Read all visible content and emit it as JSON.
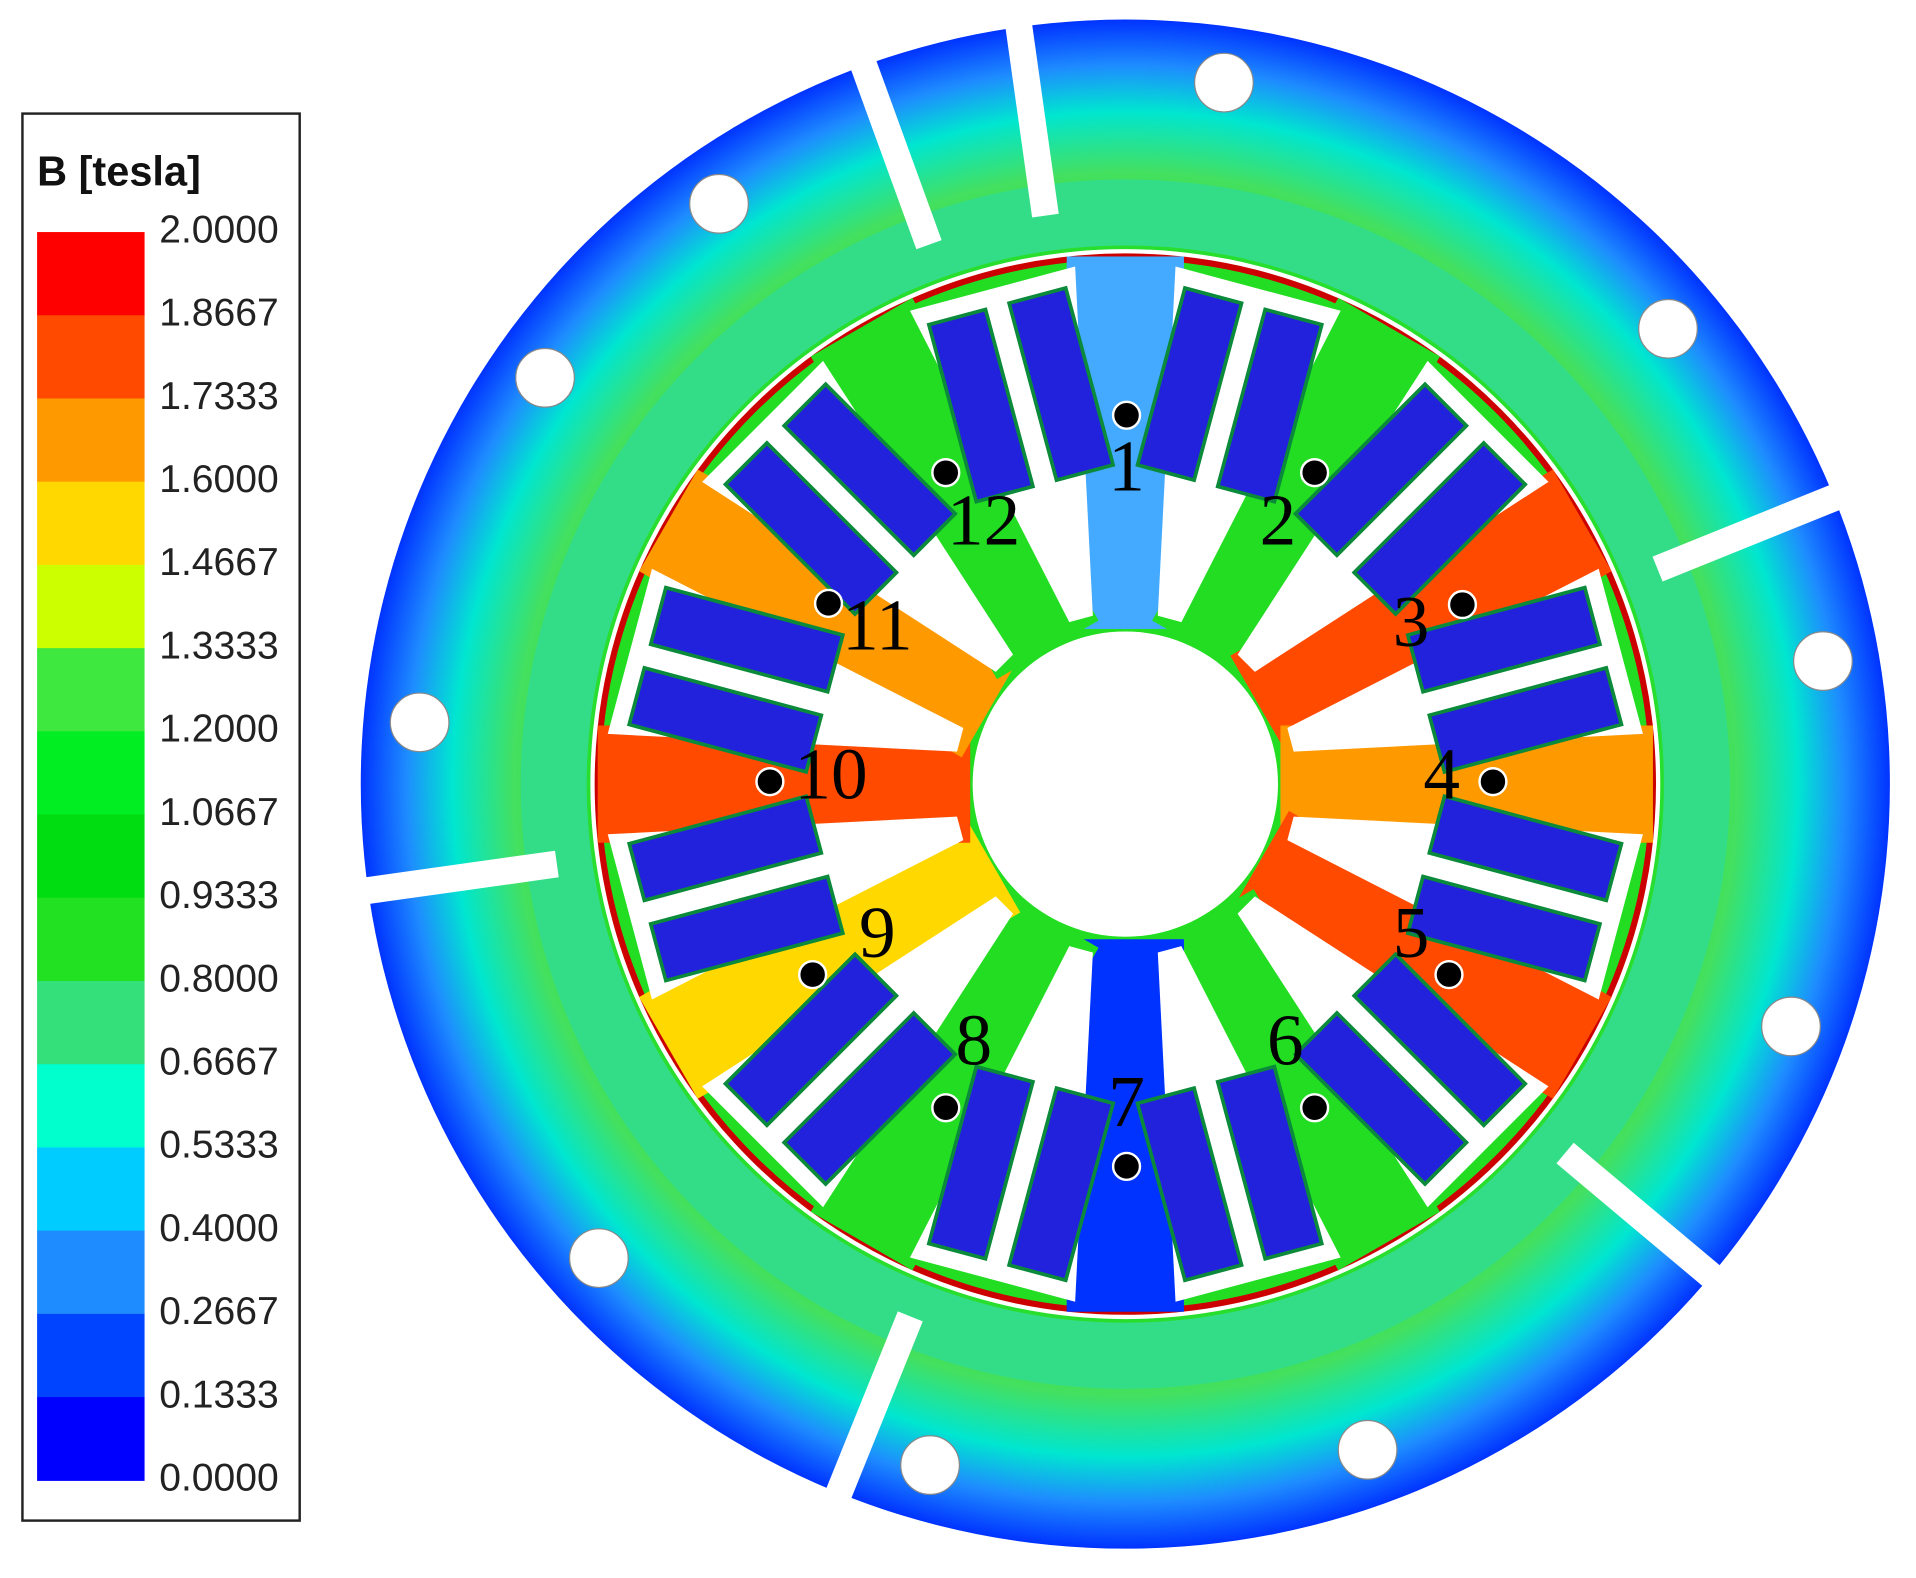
{
  "legend": {
    "title": "B [tesla]",
    "levels": [
      "2.0000",
      "1.8667",
      "1.7333",
      "1.6000",
      "1.4667",
      "1.3333",
      "1.2000",
      "1.0667",
      "0.9333",
      "0.8000",
      "0.6667",
      "0.5333",
      "0.4000",
      "0.2667",
      "0.1333",
      "0.0000"
    ],
    "colors": [
      "#ff0000",
      "#ff4a00",
      "#ff9900",
      "#ffd800",
      "#ccff00",
      "#3fe83f",
      "#00ee22",
      "#00dd11",
      "#22e022",
      "#33e07a",
      "#00ffcc",
      "#00ccff",
      "#1e8cff",
      "#0044ff",
      "#0000ff"
    ]
  },
  "regions": [
    {
      "label": "1"
    },
    {
      "label": "2"
    },
    {
      "label": "3"
    },
    {
      "label": "4"
    },
    {
      "label": "5"
    },
    {
      "label": "6"
    },
    {
      "label": "7"
    },
    {
      "label": "8"
    },
    {
      "label": "9"
    },
    {
      "label": "10"
    },
    {
      "label": "11"
    },
    {
      "label": "12"
    }
  ]
}
